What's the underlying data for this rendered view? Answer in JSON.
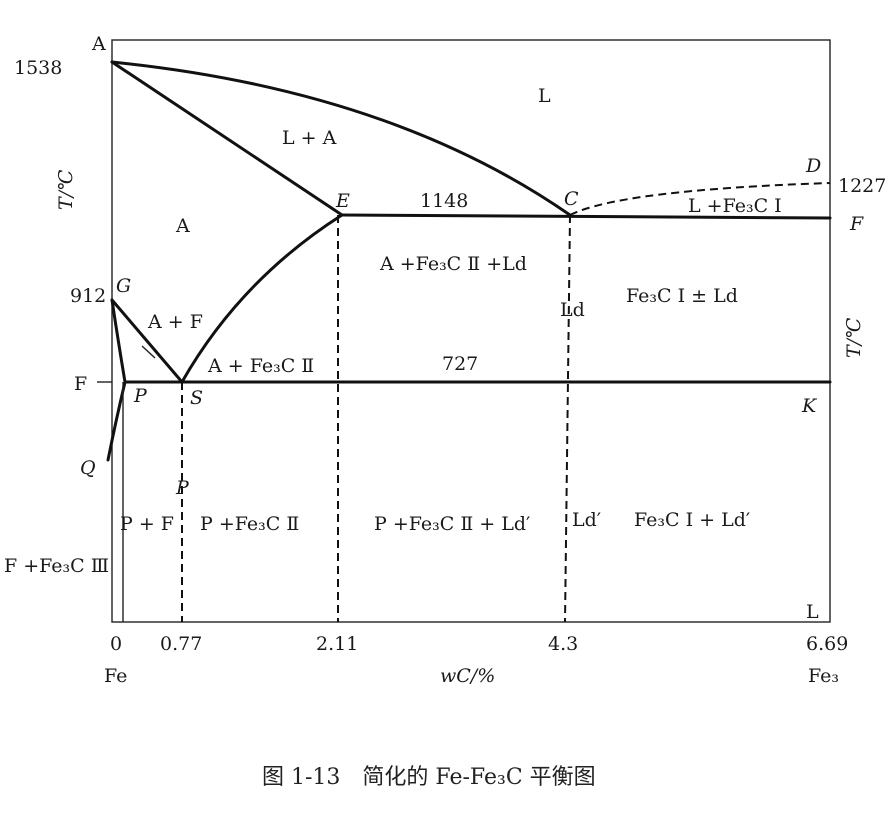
{
  "diagram": {
    "points": {
      "A": "A",
      "C": "C",
      "D": "D",
      "E": "E",
      "F_right": "F",
      "G": "G",
      "P": "P",
      "S": "S",
      "K": "K",
      "Q": "Q",
      "P_lower": "P",
      "L_corner": "L"
    },
    "temperatures": {
      "t1538": "1538",
      "t1227": "1227",
      "t1148": "1148",
      "t912": "912",
      "t727": "727",
      "F_left": "F"
    },
    "axis": {
      "y_label_left": "T/℃",
      "y_label_right": "T/℃",
      "x_label": "wC/%",
      "x_ticks": [
        "0",
        "0.77",
        "2.11",
        "4.3",
        "6.69"
      ],
      "x_left_name": "Fe",
      "x_right_name": "Fe₃"
    },
    "phases": {
      "L": "L",
      "LA": "L + A",
      "A": "A",
      "AF": "A + F",
      "AFe3CII": "A + Fe₃C Ⅱ",
      "AFe3CIILd": "A +Fe₃C Ⅱ +Ld",
      "Ld": "Ld",
      "LFe3CI": "L +Fe₃C Ⅰ",
      "Fe3CILd": "Fe₃C Ⅰ ± Ld",
      "PF": "P + F",
      "PFe3CII": "P +Fe₃C Ⅱ",
      "PFe3CIILdp": "P +Fe₃C Ⅱ + Ld′",
      "Ldp": "Ld′",
      "Fe3CILdp": "Fe₃C Ⅰ + Ld′",
      "FFe3CIII": "F +Fe₃C Ⅲ"
    },
    "caption": "图 1-13　简化的 Fe-Fe₃C 平衡图"
  }
}
